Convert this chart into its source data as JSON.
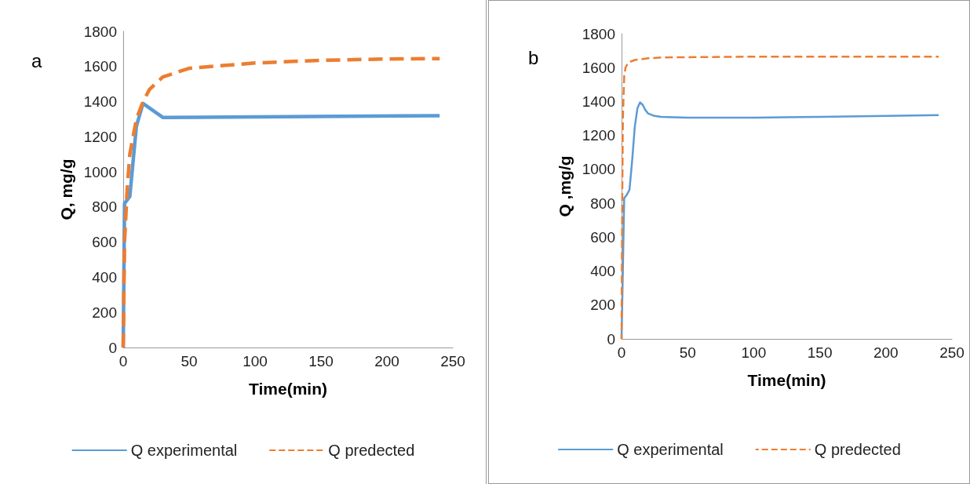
{
  "chart_data": [
    {
      "type": "line",
      "xlabel": "Time(min)",
      "ylabel": "Q, mg/g",
      "annotations": [
        "a"
      ],
      "xlim": [
        0,
        250
      ],
      "xticks": [
        0,
        50,
        100,
        150,
        200,
        250
      ],
      "ylim": [
        0,
        1800
      ],
      "yticks": [
        0,
        200,
        400,
        600,
        800,
        1000,
        1200,
        1400,
        1600,
        1800
      ],
      "grid": false,
      "legend": "bottom",
      "marker": "none",
      "series": [
        {
          "name": "Q experimental",
          "color": "#5b9bd5",
          "line_style": "solid",
          "x": [
            0,
            1,
            5,
            10,
            15,
            30,
            240
          ],
          "values": [
            0,
            820,
            860,
            1260,
            1390,
            1310,
            1320
          ]
        },
        {
          "name": "Q predected",
          "color": "#ed7d31",
          "line_style": "dashed",
          "x": [
            0,
            1,
            3,
            5,
            10,
            15,
            20,
            30,
            50,
            100,
            150,
            200,
            240
          ],
          "values": [
            0,
            600,
            900,
            1100,
            1300,
            1400,
            1470,
            1540,
            1590,
            1620,
            1635,
            1643,
            1645
          ]
        }
      ]
    },
    {
      "type": "line",
      "xlabel": "Time(min)",
      "ylabel": "Q ,mg/g",
      "annotations": [
        "b"
      ],
      "xlim": [
        0,
        250
      ],
      "xticks": [
        0,
        50,
        100,
        150,
        200,
        250
      ],
      "ylim": [
        0,
        1800
      ],
      "yticks": [
        0,
        200,
        400,
        600,
        800,
        1000,
        1200,
        1400,
        1600,
        1800
      ],
      "grid": false,
      "legend": "bottom",
      "marker": "none",
      "series": [
        {
          "name": "Q experimental",
          "color": "#5b9bd5",
          "line_style": "solid",
          "x": [
            0,
            2,
            4,
            6,
            8,
            10,
            12,
            14,
            16,
            18,
            20,
            25,
            30,
            50,
            100,
            150,
            240
          ],
          "values": [
            0,
            830,
            850,
            880,
            1050,
            1250,
            1360,
            1395,
            1380,
            1350,
            1330,
            1315,
            1310,
            1305,
            1305,
            1310,
            1320
          ]
        },
        {
          "name": "Q predected",
          "color": "#ed7d31",
          "line_style": "dashed",
          "x": [
            0,
            0.5,
            1,
            2,
            3,
            5,
            10,
            20,
            30,
            100,
            240
          ],
          "values": [
            0,
            800,
            1300,
            1550,
            1600,
            1630,
            1645,
            1655,
            1660,
            1665,
            1665
          ]
        }
      ]
    }
  ]
}
